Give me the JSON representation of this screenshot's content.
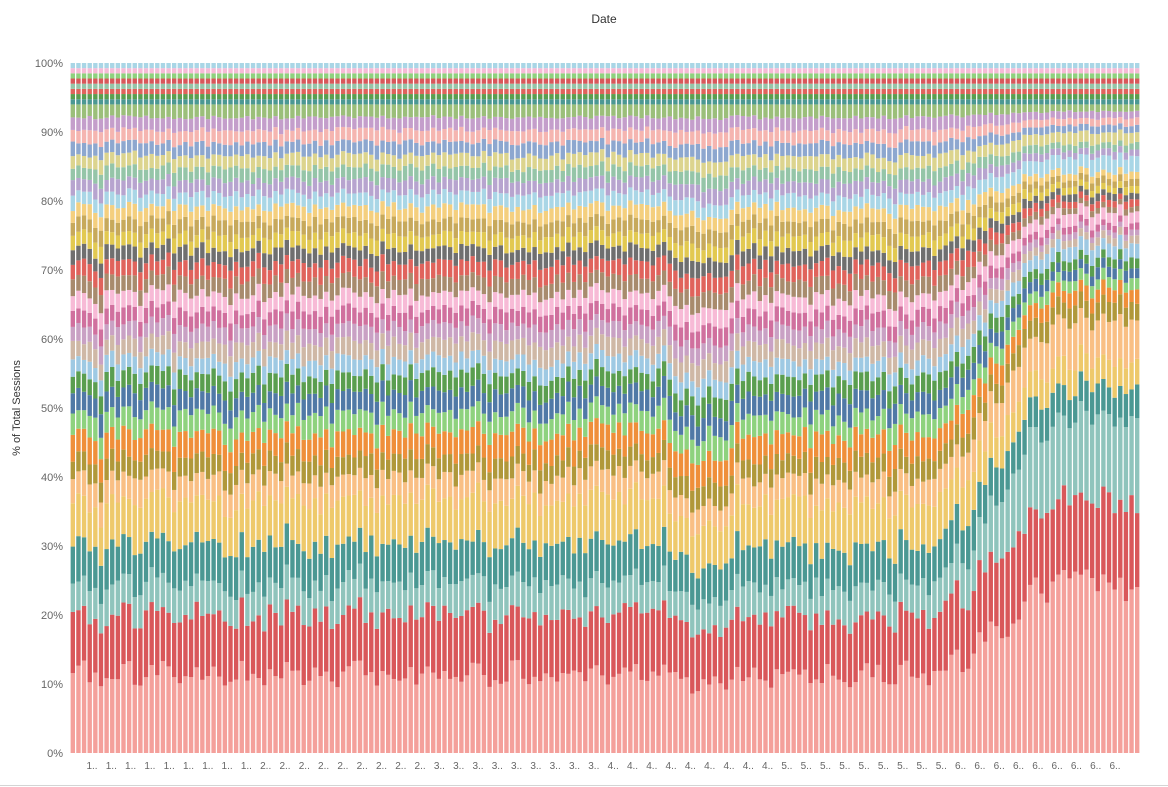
{
  "chart_data": {
    "type": "bar",
    "stacked": "percent",
    "title": "Date",
    "xlabel": "",
    "ylabel": "% of Total Sessions",
    "ylim": [
      0,
      100
    ],
    "y_ticks": [
      "0%",
      "10%",
      "20%",
      "30%",
      "40%",
      "50%",
      "60%",
      "70%",
      "80%",
      "90%",
      "100%"
    ],
    "x_tick_labels": [
      "1..",
      "1..",
      "1..",
      "1..",
      "1..",
      "1..",
      "1..",
      "1..",
      "1..",
      "2..",
      "2..",
      "2..",
      "2..",
      "2..",
      "2..",
      "2..",
      "2..",
      "2..",
      "3..",
      "3..",
      "3..",
      "3..",
      "3..",
      "3..",
      "3..",
      "3..",
      "3..",
      "4..",
      "4..",
      "4..",
      "4..",
      "4..",
      "4..",
      "4..",
      "4..",
      "4..",
      "5..",
      "5..",
      "5..",
      "5..",
      "5..",
      "5..",
      "5..",
      "5..",
      "5..",
      "6..",
      "6..",
      "6..",
      "6..",
      "6..",
      "6..",
      "6..",
      "6..",
      "6.."
    ],
    "grid": false,
    "bar_count": 190,
    "palette": [
      "#f4a09b",
      "#d9575a",
      "#8fc4bc",
      "#4b9893",
      "#eec96b",
      "#f9bf84",
      "#b0983a",
      "#ef8f3a",
      "#8ed27e",
      "#5079a6",
      "#5a9e4f",
      "#9ec9e3",
      "#cfb8a6",
      "#c9a1c4",
      "#d0709e",
      "#f7bad6",
      "#a88b6d",
      "#e0635c",
      "#6f6f6f",
      "#e2c951",
      "#c7a95b",
      "#f4cf7e",
      "#a9d6e6",
      "#b7a4cf",
      "#95c5a8",
      "#dcd48e",
      "#8da7cf",
      "#f5b5b0",
      "#c49ecb",
      "#9bbf7a"
    ],
    "layers": [
      {
        "start": 10,
        "end": 23
      },
      {
        "start": 7.5,
        "end": 11
      },
      {
        "start": 4,
        "end": 11
      },
      {
        "start": 5,
        "end": 4
      },
      {
        "start": 5.5,
        "end": 3.5
      },
      {
        "start": 3,
        "end": 5.5
      },
      {
        "start": 2.5,
        "end": 2.5
      },
      {
        "start": 3,
        "end": 1.8
      },
      {
        "start": 2.6,
        "end": 1.4
      },
      {
        "start": 2.6,
        "end": 1.4
      },
      {
        "start": 2.2,
        "end": 1.3
      },
      {
        "start": 2,
        "end": 1.8
      },
      {
        "start": 2.2,
        "end": 1
      },
      {
        "start": 2,
        "end": 0.8
      },
      {
        "start": 2,
        "end": 0.9
      },
      {
        "start": 2,
        "end": 1.5
      },
      {
        "start": 2,
        "end": 0.8
      },
      {
        "start": 2,
        "end": 0.9
      },
      {
        "start": 1.8,
        "end": 0.9
      },
      {
        "start": 1.8,
        "end": 0.9
      },
      {
        "start": 1.8,
        "end": 0.9
      },
      {
        "start": 1.7,
        "end": 0.9
      },
      {
        "start": 1.7,
        "end": 2.0
      },
      {
        "start": 1.7,
        "end": 0.9
      },
      {
        "start": 1.6,
        "end": 0.9
      },
      {
        "start": 1.6,
        "end": 1.5
      },
      {
        "start": 1.6,
        "end": 0.9
      },
      {
        "start": 1.6,
        "end": 0.9
      },
      {
        "start": 1.6,
        "end": 0.9
      },
      {
        "start": 1.6,
        "end": 0.9
      }
    ]
  }
}
